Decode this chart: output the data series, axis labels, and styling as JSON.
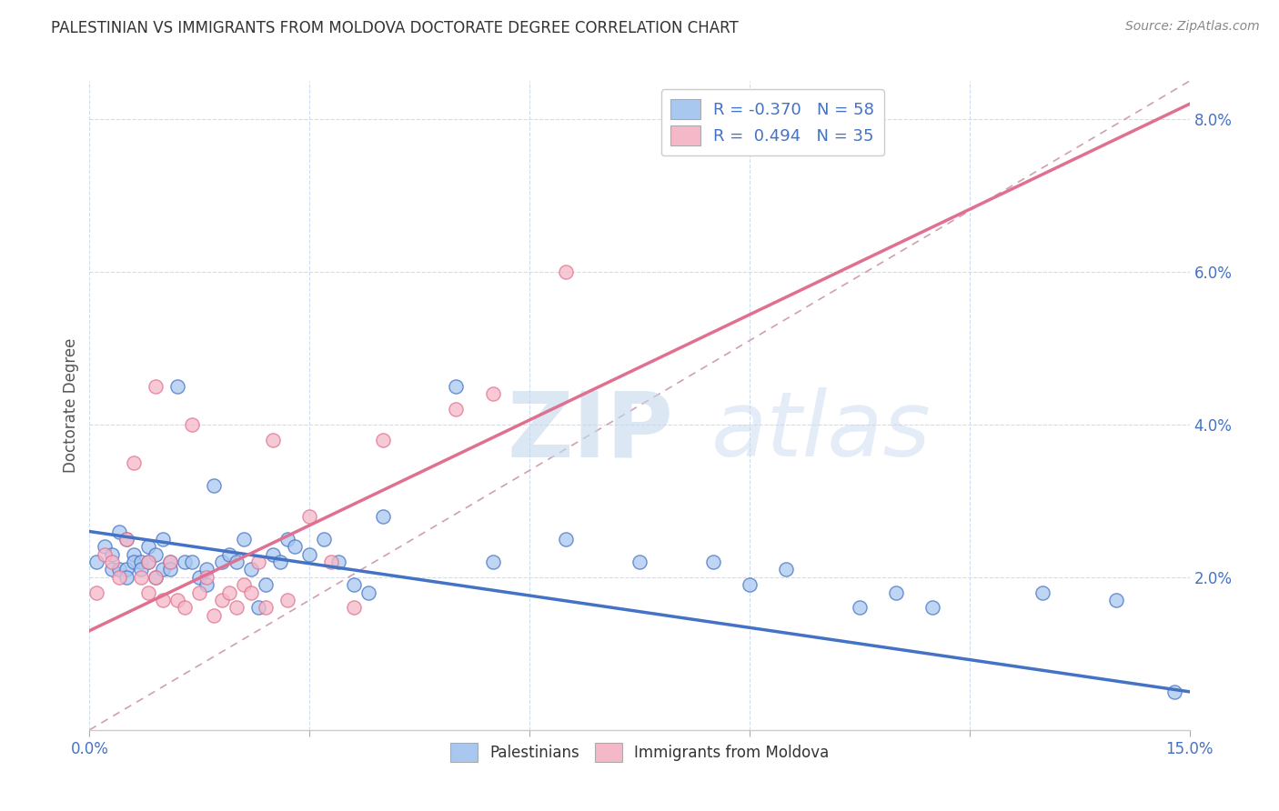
{
  "title": "PALESTINIAN VS IMMIGRANTS FROM MOLDOVA DOCTORATE DEGREE CORRELATION CHART",
  "source": "Source: ZipAtlas.com",
  "ylabel": "Doctorate Degree",
  "xlim": [
    0.0,
    0.15
  ],
  "ylim": [
    0.0,
    0.085
  ],
  "color_blue": "#a8c8f0",
  "color_pink": "#f5b8c8",
  "color_blue_line": "#4472c4",
  "color_pink_line": "#e07090",
  "color_dashed": "#d0a0b0",
  "blue_scatter_x": [
    0.001,
    0.002,
    0.003,
    0.003,
    0.004,
    0.004,
    0.005,
    0.005,
    0.005,
    0.006,
    0.006,
    0.007,
    0.007,
    0.008,
    0.008,
    0.009,
    0.009,
    0.01,
    0.01,
    0.011,
    0.011,
    0.012,
    0.013,
    0.014,
    0.015,
    0.016,
    0.016,
    0.017,
    0.018,
    0.019,
    0.02,
    0.021,
    0.022,
    0.023,
    0.024,
    0.025,
    0.026,
    0.027,
    0.028,
    0.03,
    0.032,
    0.034,
    0.036,
    0.038,
    0.04,
    0.05,
    0.055,
    0.065,
    0.075,
    0.085,
    0.09,
    0.095,
    0.105,
    0.11,
    0.115,
    0.13,
    0.14,
    0.148
  ],
  "blue_scatter_y": [
    0.022,
    0.024,
    0.021,
    0.023,
    0.026,
    0.021,
    0.025,
    0.021,
    0.02,
    0.023,
    0.022,
    0.022,
    0.021,
    0.024,
    0.022,
    0.023,
    0.02,
    0.025,
    0.021,
    0.022,
    0.021,
    0.045,
    0.022,
    0.022,
    0.02,
    0.021,
    0.019,
    0.032,
    0.022,
    0.023,
    0.022,
    0.025,
    0.021,
    0.016,
    0.019,
    0.023,
    0.022,
    0.025,
    0.024,
    0.023,
    0.025,
    0.022,
    0.019,
    0.018,
    0.028,
    0.045,
    0.022,
    0.025,
    0.022,
    0.022,
    0.019,
    0.021,
    0.016,
    0.018,
    0.016,
    0.018,
    0.017,
    0.005
  ],
  "pink_scatter_x": [
    0.001,
    0.002,
    0.003,
    0.004,
    0.005,
    0.006,
    0.007,
    0.008,
    0.008,
    0.009,
    0.009,
    0.01,
    0.011,
    0.012,
    0.013,
    0.014,
    0.015,
    0.016,
    0.017,
    0.018,
    0.019,
    0.02,
    0.021,
    0.022,
    0.023,
    0.024,
    0.025,
    0.027,
    0.03,
    0.033,
    0.036,
    0.04,
    0.05,
    0.055,
    0.065
  ],
  "pink_scatter_y": [
    0.018,
    0.023,
    0.022,
    0.02,
    0.025,
    0.035,
    0.02,
    0.018,
    0.022,
    0.045,
    0.02,
    0.017,
    0.022,
    0.017,
    0.016,
    0.04,
    0.018,
    0.02,
    0.015,
    0.017,
    0.018,
    0.016,
    0.019,
    0.018,
    0.022,
    0.016,
    0.038,
    0.017,
    0.028,
    0.022,
    0.016,
    0.038,
    0.042,
    0.044,
    0.06
  ],
  "blue_line_x": [
    0.0,
    0.15
  ],
  "blue_line_y": [
    0.026,
    0.005
  ],
  "pink_line_x": [
    0.0,
    0.15
  ],
  "pink_line_y": [
    0.013,
    0.082
  ],
  "dashed_line_x": [
    0.0,
    0.15
  ],
  "dashed_line_y": [
    0.0,
    0.085
  ]
}
